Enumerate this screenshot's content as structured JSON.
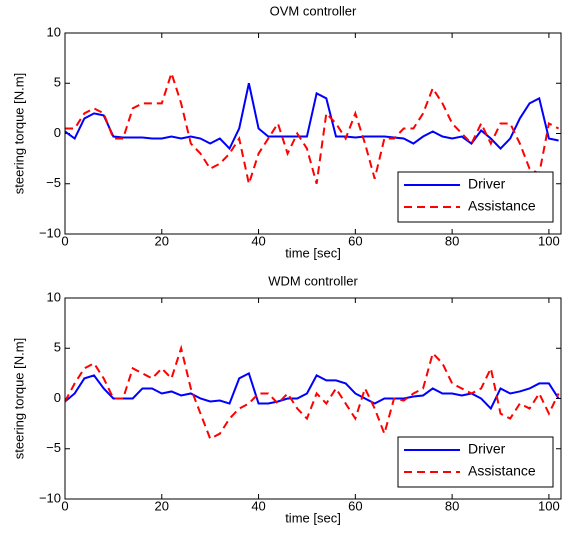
{
  "chart_data": [
    {
      "type": "line",
      "title": "OVM controller",
      "xlabel": "time [sec]",
      "ylabel": "steering torque [N.m]",
      "x": [
        0,
        2,
        4,
        6,
        8,
        10,
        12,
        14,
        16,
        18,
        20,
        22,
        24,
        26,
        28,
        30,
        32,
        34,
        36,
        38,
        40,
        42,
        44,
        46,
        48,
        50,
        52,
        54,
        56,
        58,
        60,
        62,
        64,
        66,
        68,
        70,
        72,
        74,
        76,
        78,
        80,
        82,
        84,
        86,
        88,
        90,
        92,
        94,
        96,
        98,
        100,
        102
      ],
      "series": [
        {
          "name": "Driver",
          "color": "#0000ff",
          "linestyle": "solid",
          "values": [
            0.2,
            -0.5,
            1.5,
            2,
            1.8,
            -0.3,
            -0.4,
            -0.4,
            -0.4,
            -0.5,
            -0.5,
            -0.3,
            -0.5,
            -0.3,
            -0.5,
            -1,
            -0.5,
            -1.5,
            0.5,
            5,
            0.5,
            -0.3,
            -0.3,
            -0.3,
            -0.3,
            -0.3,
            4,
            3.5,
            -0.3,
            -0.3,
            -0.4,
            -0.3,
            -0.3,
            -0.3,
            -0.4,
            -0.5,
            -1,
            -0.3,
            0.2,
            -0.3,
            -0.5,
            -0.3,
            -1,
            0.3,
            -0.5,
            -1.5,
            -0.5,
            1.5,
            3,
            3.5,
            -0.5,
            -0.7
          ]
        },
        {
          "name": "Assistance",
          "color": "#ff0000",
          "linestyle": "dashed",
          "values": [
            0.5,
            0.5,
            2,
            2.5,
            2,
            -0.5,
            -0.5,
            2.5,
            3,
            3,
            3,
            6,
            3,
            -1,
            -2,
            -3.5,
            -3,
            -2,
            -0.5,
            -5,
            -2,
            -0.5,
            1,
            -2,
            0,
            -1.5,
            -5,
            2,
            1,
            -0.5,
            2,
            -1,
            -4.5,
            -0.5,
            -0.5,
            0.5,
            0.5,
            2,
            4.5,
            3,
            1,
            0,
            -1,
            1,
            -1,
            1,
            1,
            -1,
            -3.5,
            -4,
            1,
            0.5
          ]
        }
      ],
      "xlim": [
        0,
        102.5
      ],
      "xticks": [
        0,
        20,
        40,
        60,
        80,
        100
      ],
      "ylim": [
        -10,
        10
      ],
      "yticks": [
        {
          "value": -10,
          "label": "−10"
        },
        {
          "value": -5,
          "label": "−5"
        },
        0,
        5,
        10
      ],
      "legend": "lower right",
      "grid": false
    },
    {
      "type": "line",
      "title": "WDM controller",
      "xlabel": "time [sec]",
      "ylabel": "steering torque [N.m]",
      "x": [
        0,
        2,
        4,
        6,
        8,
        10,
        12,
        14,
        16,
        18,
        20,
        22,
        24,
        26,
        28,
        30,
        32,
        34,
        36,
        38,
        40,
        42,
        44,
        46,
        48,
        50,
        52,
        54,
        56,
        58,
        60,
        62,
        64,
        66,
        68,
        70,
        72,
        74,
        76,
        78,
        80,
        82,
        84,
        86,
        88,
        90,
        92,
        94,
        96,
        98,
        100,
        102
      ],
      "series": [
        {
          "name": "Driver",
          "color": "#0000ff",
          "linestyle": "solid",
          "values": [
            -0.3,
            0.5,
            2,
            2.3,
            1,
            0,
            0,
            0,
            1,
            1,
            0.5,
            0.7,
            0.3,
            0.5,
            0,
            -0.3,
            -0.2,
            -0.5,
            2,
            2.5,
            -0.5,
            -0.5,
            -0.3,
            0,
            0,
            0.5,
            2.3,
            1.8,
            1.8,
            1.5,
            0.5,
            0,
            -0.5,
            0,
            0,
            0,
            0.2,
            0.3,
            1,
            0.5,
            0.5,
            0.3,
            0.5,
            0,
            -1,
            1,
            0.5,
            0.7,
            1,
            1.5,
            1.5,
            0
          ]
        },
        {
          "name": "Assistance",
          "color": "#ff0000",
          "linestyle": "dashed",
          "values": [
            -0.3,
            1.5,
            3,
            3.5,
            2,
            0,
            0,
            3,
            2.5,
            2,
            3,
            2,
            5,
            1,
            -1.5,
            -4,
            -3.5,
            -2,
            -1,
            -0.5,
            0.5,
            0.5,
            -0.5,
            0.5,
            -1,
            -2,
            0.5,
            -0.5,
            1,
            -0.5,
            -2,
            1,
            -1,
            -3.5,
            0,
            -0.2,
            0.5,
            1,
            4.5,
            3.5,
            1.5,
            1,
            0.5,
            1,
            3,
            -1.5,
            -2,
            -0.5,
            -1,
            0.5,
            -1.5,
            0.5
          ]
        }
      ],
      "xlim": [
        0,
        102.5
      ],
      "xticks": [
        0,
        20,
        40,
        60,
        80,
        100
      ],
      "ylim": [
        -10,
        10
      ],
      "yticks": [
        {
          "value": -10,
          "label": "−10"
        },
        {
          "value": -5,
          "label": "−5"
        },
        0,
        5,
        10
      ],
      "legend": "lower right",
      "grid": false
    }
  ]
}
